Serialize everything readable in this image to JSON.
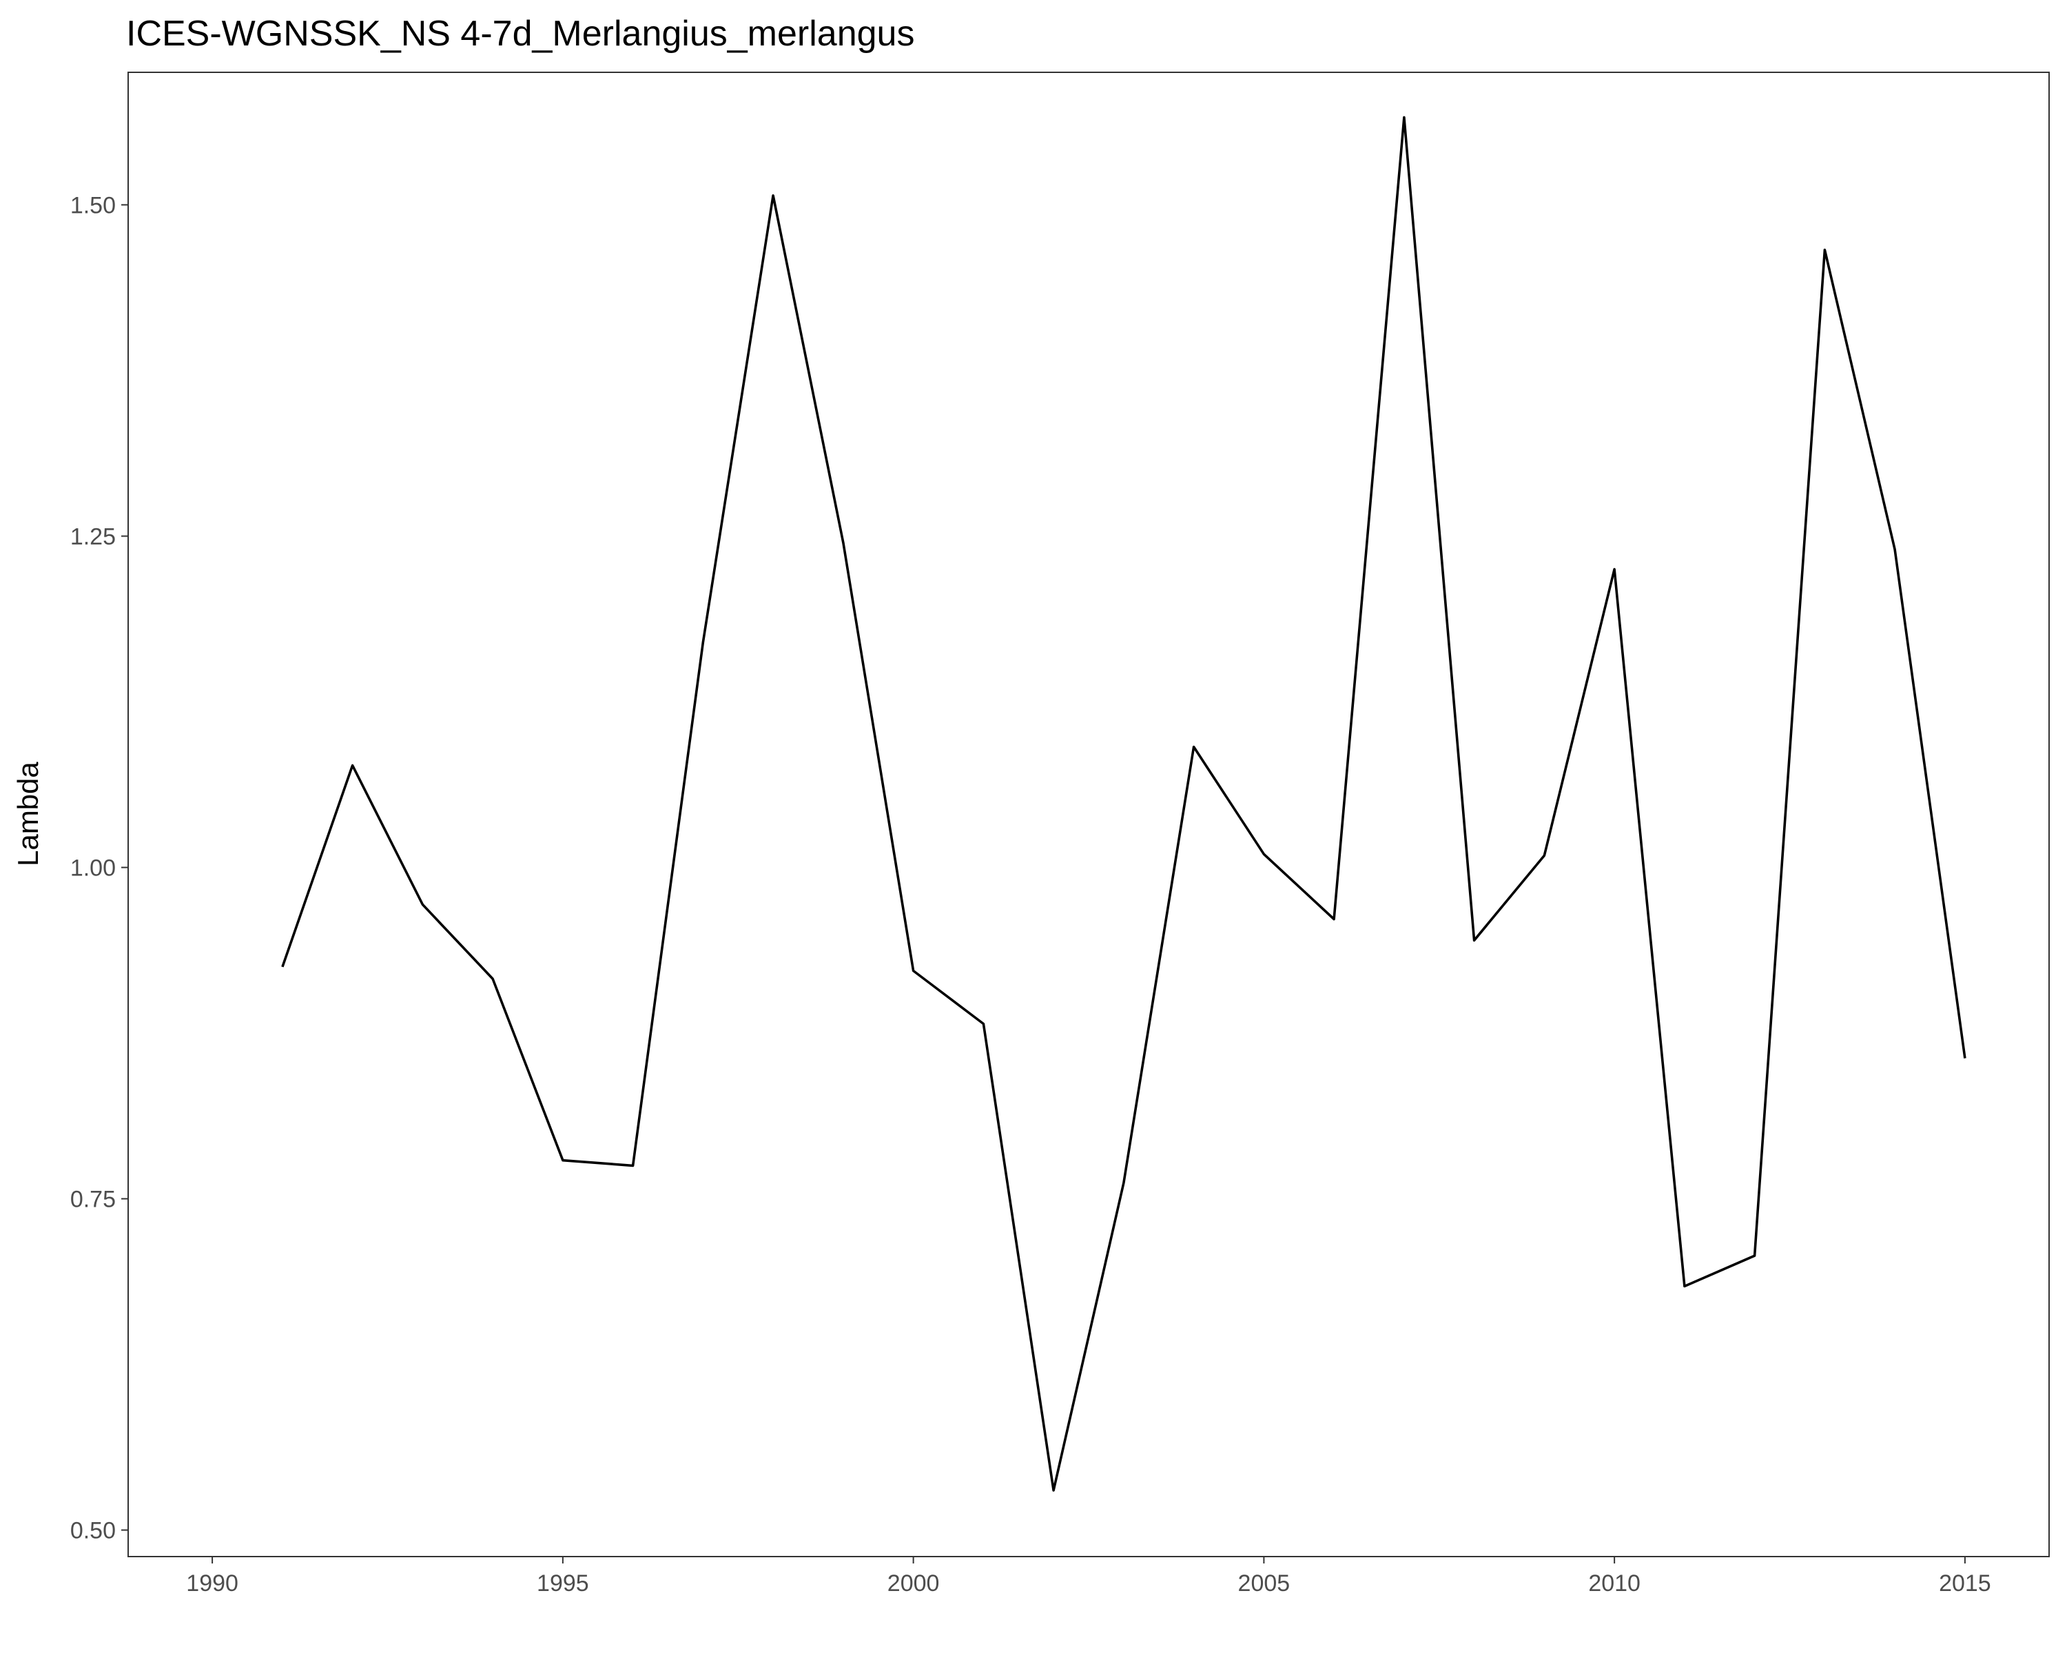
{
  "chart_data": {
    "type": "line",
    "title": "ICES-WGNSSK_NS 4-7d_Merlangius_merlangus",
    "xlabel": "",
    "ylabel": "Lambda",
    "xlim": [
      1988.8,
      2016.2
    ],
    "ylim": [
      0.48,
      1.6
    ],
    "xticks": [
      1990,
      1995,
      2000,
      2005,
      2010,
      2015
    ],
    "yticks": [
      0.5,
      0.75,
      1.0,
      1.25,
      1.5
    ],
    "xtick_labels": [
      "1990",
      "1995",
      "2000",
      "2005",
      "2010",
      "2015"
    ],
    "ytick_labels": [
      "0.50",
      "0.75",
      "1.00",
      "1.25",
      "1.50"
    ],
    "grid": false,
    "line_color": "#000000",
    "series": [
      {
        "x": [
          1991,
          1992,
          1993,
          1994,
          1995,
          1996,
          1997,
          1998,
          1999,
          2000,
          2001,
          2002,
          2003,
          2004,
          2005,
          2006,
          2007,
          2008,
          2009,
          2010,
          2011,
          2012,
          2013,
          2014,
          2015
        ],
        "values": [
          0.925,
          1.077,
          0.972,
          0.916,
          0.779,
          0.775,
          1.17,
          1.507,
          1.245,
          0.922,
          0.882,
          0.53,
          0.762,
          1.091,
          1.01,
          0.961,
          1.566,
          0.945,
          1.009,
          1.225,
          0.684,
          0.707,
          1.466,
          1.24,
          0.856
        ]
      }
    ]
  }
}
